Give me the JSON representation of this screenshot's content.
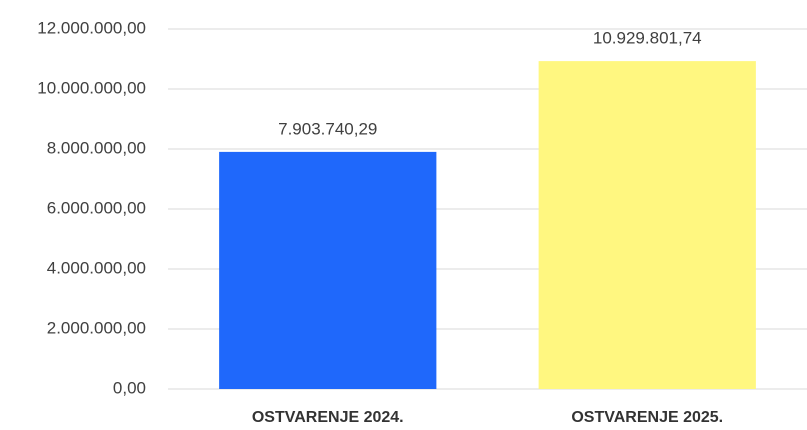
{
  "chart_data": {
    "type": "bar",
    "categories": [
      "OSTVARENJE 2024.",
      "OSTVARENJE 2025."
    ],
    "values": [
      7903740.29,
      10929801.74
    ],
    "value_labels": [
      "7.903.740,29",
      "10.929.801,74"
    ],
    "colors": [
      "#1f68fb",
      "#fff780"
    ],
    "ylim": [
      0,
      12000000
    ],
    "yticks": [
      {
        "value": 0,
        "label": "0,00"
      },
      {
        "value": 2000000,
        "label": "2.000.000,00"
      },
      {
        "value": 4000000,
        "label": "4.000.000,00"
      },
      {
        "value": 6000000,
        "label": "6.000.000,00"
      },
      {
        "value": 8000000,
        "label": "8.000.000,00"
      },
      {
        "value": 10000000,
        "label": "10.000.000,00"
      },
      {
        "value": 12000000,
        "label": "12.000.000,00"
      }
    ],
    "grid": true
  }
}
